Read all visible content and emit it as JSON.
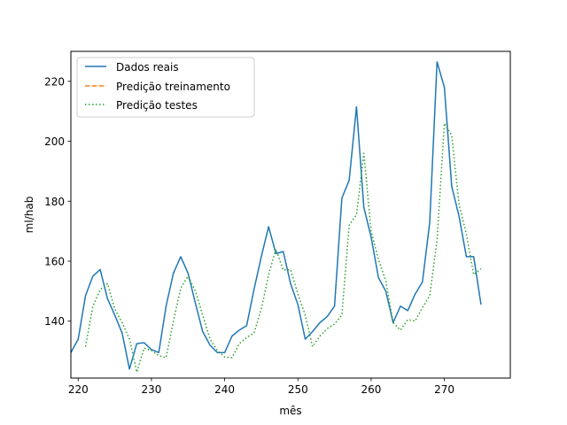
{
  "chart_data": {
    "type": "line",
    "title": "",
    "xlabel": "mês",
    "ylabel": "ml/hab",
    "xlim": [
      219,
      279
    ],
    "ylim": [
      121,
      230
    ],
    "xticks": [
      220,
      230,
      240,
      250,
      260,
      270
    ],
    "yticks": [
      140,
      160,
      180,
      200,
      220
    ],
    "legend_position": "top-left",
    "series": [
      {
        "name": "Dados reais",
        "color": "#1f77b4",
        "dash": "solid",
        "x": [
          219,
          220,
          221,
          222,
          223,
          224,
          225,
          226,
          227,
          228,
          229,
          230,
          231,
          232,
          233,
          234,
          235,
          236,
          237,
          238,
          239,
          240,
          241,
          242,
          243,
          244,
          245,
          246,
          247,
          248,
          249,
          250,
          251,
          252,
          253,
          254,
          255,
          256,
          257,
          258,
          259,
          260,
          261,
          262,
          263,
          264,
          265,
          266,
          267,
          268,
          269,
          270,
          271,
          272,
          273,
          274,
          275
        ],
        "values": [
          129.5,
          134,
          148.5,
          155,
          157.2,
          147.5,
          142,
          136,
          124,
          132.5,
          132.8,
          130.5,
          129.5,
          145,
          156,
          161.5,
          156,
          146,
          136.5,
          132,
          129.5,
          129.5,
          135,
          137,
          138.5,
          150.5,
          161.5,
          171.5,
          162.5,
          163.2,
          152.5,
          145.5,
          134,
          136.5,
          139.5,
          141.5,
          145,
          181,
          187,
          211.5,
          178,
          168,
          154.5,
          150,
          139.5,
          145,
          143.5,
          149,
          153,
          173,
          226.5,
          218,
          185,
          175,
          161.5,
          161.5,
          145.5
        ]
      },
      {
        "name": "Predição treinamento",
        "color": "#ff7f0e",
        "dash": "dashed",
        "x": [],
        "values": []
      },
      {
        "name": "Predição testes",
        "color": "#2ca02c",
        "dash": "dotted",
        "x": [
          221,
          222,
          223,
          224,
          225,
          226,
          227,
          228,
          229,
          230,
          231,
          232,
          233,
          234,
          235,
          236,
          237,
          238,
          239,
          240,
          241,
          242,
          243,
          244,
          245,
          246,
          247,
          248,
          249,
          250,
          251,
          252,
          253,
          254,
          255,
          256,
          257,
          258,
          259,
          260,
          261,
          262,
          263,
          264,
          265,
          266,
          267,
          268,
          269,
          270,
          271,
          272,
          273,
          274,
          275
        ],
        "values": [
          131.5,
          145,
          150.5,
          152.5,
          144,
          139.5,
          134,
          123,
          131,
          130.2,
          128.5,
          127.8,
          140,
          151,
          155,
          150,
          142,
          134,
          130.2,
          128,
          127.8,
          132.5,
          134.5,
          136,
          144,
          155.5,
          164,
          157,
          157.2,
          149,
          142,
          131.5,
          135,
          137.5,
          139,
          142,
          172,
          175.5,
          196,
          170,
          160.5,
          153.5,
          139.5,
          137,
          140.5,
          140,
          144.5,
          148.5,
          167,
          206,
          202,
          179,
          169,
          155.5,
          157.5
        ]
      }
    ]
  }
}
